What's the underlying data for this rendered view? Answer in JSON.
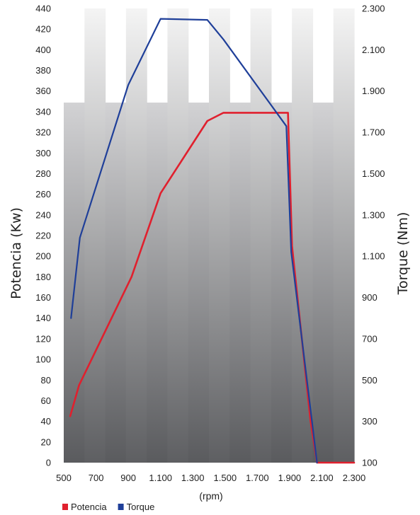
{
  "chart_data": {
    "type": "line",
    "title": "",
    "xlabel": "(rpm)",
    "ylabel_left": "Potencia (Kw)",
    "ylabel_right": "Torque (Nm)",
    "x_ticks": [
      "500",
      "700",
      "900",
      "1.100",
      "1.300",
      "1.500",
      "1.700",
      "1.900",
      "2.100",
      "2.300"
    ],
    "xlim": [
      500,
      2300
    ],
    "y_left_ticks": [
      "0",
      "20",
      "40",
      "60",
      "80",
      "100",
      "120",
      "140",
      "160",
      "180",
      "200",
      "220",
      "240",
      "260",
      "280",
      "300",
      "320",
      "340",
      "360",
      "380",
      "400",
      "420",
      "440"
    ],
    "ylim_left": [
      0,
      440
    ],
    "y_right_ticks": [
      "100",
      "300",
      "500",
      "700",
      "900",
      "1.100",
      "1.300",
      "1.500",
      "1.700",
      "1.900",
      "2.100",
      "2.300"
    ],
    "ylim_right": [
      100,
      2300
    ],
    "series": [
      {
        "name": "Potencia",
        "axis": "left",
        "color": "#e0202e",
        "points": [
          [
            540,
            45
          ],
          [
            595,
            75
          ],
          [
            920,
            180
          ],
          [
            1100,
            261
          ],
          [
            1390,
            331
          ],
          [
            1490,
            339
          ],
          [
            1890,
            339
          ],
          [
            1915,
            210
          ],
          [
            2030,
            40
          ],
          [
            2070,
            0
          ],
          [
            2300,
            0
          ]
        ]
      },
      {
        "name": "Torque",
        "axis": "right",
        "color": "#1f3f99",
        "points": [
          [
            545,
            800
          ],
          [
            600,
            1190
          ],
          [
            900,
            1930
          ],
          [
            1100,
            2250
          ],
          [
            1390,
            2245
          ],
          [
            1490,
            2150
          ],
          [
            1880,
            1730
          ],
          [
            1910,
            1120
          ],
          [
            2070,
            100
          ]
        ]
      }
    ],
    "legend": "bottom-left",
    "background_colors": {
      "stripe_light": "#f2f2f2",
      "stripe_dark": "#5f6062"
    }
  }
}
